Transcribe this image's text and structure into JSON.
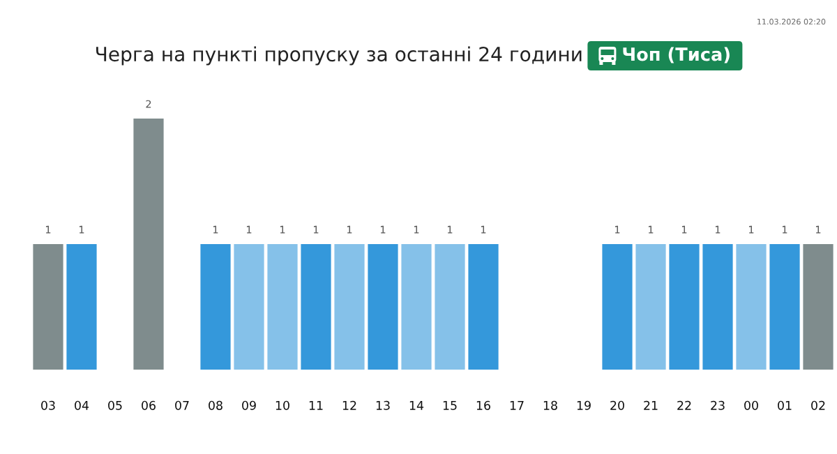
{
  "chart_data": {
    "type": "bar",
    "title": "Черга на пункті пропуску за останні 24 години",
    "subtitle": "Чоп (Тиса)",
    "annotations": [
      "11.03.2026 02:20"
    ],
    "categories": [
      "03",
      "04",
      "05",
      "06",
      "07",
      "08",
      "09",
      "10",
      "11",
      "12",
      "13",
      "14",
      "15",
      "16",
      "17",
      "18",
      "19",
      "20",
      "21",
      "22",
      "23",
      "00",
      "01",
      "02"
    ],
    "values": [
      1,
      1,
      null,
      2,
      null,
      1,
      1,
      1,
      1,
      1,
      1,
      1,
      1,
      1,
      null,
      null,
      null,
      1,
      1,
      1,
      1,
      1,
      1,
      1
    ],
    "colors": [
      "#7f8c8d",
      "#3498db",
      null,
      "#7f8c8d",
      null,
      "#3498db",
      "#85c1e9",
      "#85c1e9",
      "#3498db",
      "#85c1e9",
      "#3498db",
      "#85c1e9",
      "#85c1e9",
      "#3498db",
      null,
      null,
      null,
      "#3498db",
      "#85c1e9",
      "#3498db",
      "#3498db",
      "#85c1e9",
      "#3498db",
      "#7f8c8d"
    ],
    "ylim": [
      0,
      2
    ],
    "tick_labels": "x",
    "data_labels": true
  }
}
